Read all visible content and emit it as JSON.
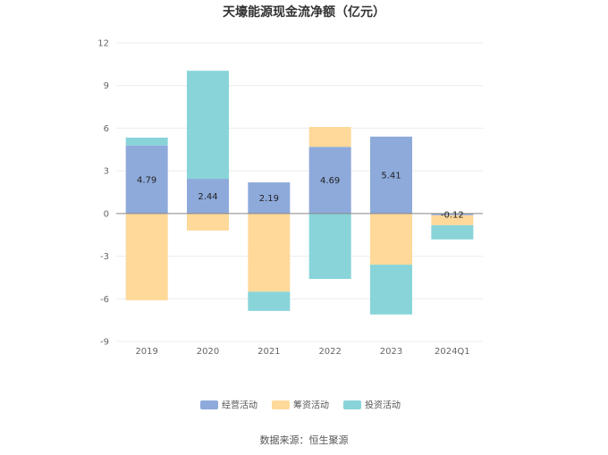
{
  "chart_data": {
    "type": "bar",
    "stacked": true,
    "title": "天壕能源现金流净额（亿元）",
    "categories": [
      "2019",
      "2020",
      "2021",
      "2022",
      "2023",
      "2024Q1"
    ],
    "series": [
      {
        "name": "经营活动",
        "color": "#8eaadb",
        "values": [
          4.79,
          2.44,
          2.19,
          4.69,
          5.41,
          -0.12
        ],
        "labels": [
          "4.79",
          "2.44",
          "2.19",
          "4.69",
          "5.41",
          "-0.12"
        ]
      },
      {
        "name": "筹资活动",
        "color": "#ffd99a",
        "values": [
          -6.1,
          -1.2,
          -5.5,
          1.4,
          -3.6,
          -0.7
        ]
      },
      {
        "name": "投资活动",
        "color": "#88d4d9",
        "values": [
          0.55,
          7.6,
          -1.35,
          -4.6,
          -3.5,
          -1.0
        ]
      }
    ],
    "ylim": [
      -9,
      12
    ],
    "yticks": [
      -9,
      -6,
      -3,
      0,
      3,
      6,
      9,
      12
    ],
    "grid": true,
    "legend_position": "bottom"
  },
  "source": "数据来源：恒生聚源"
}
